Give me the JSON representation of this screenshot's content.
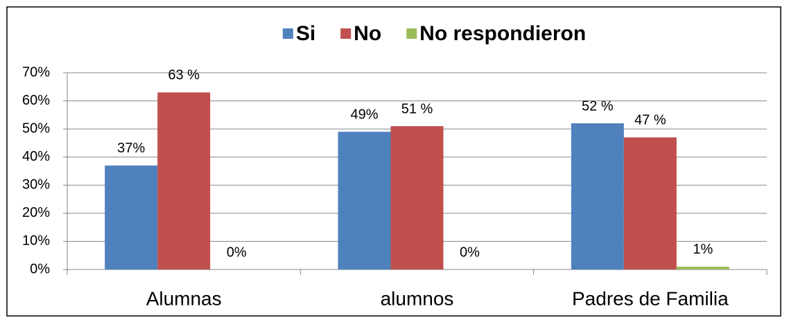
{
  "chart_data": {
    "type": "bar",
    "categories": [
      "Alumnas",
      "alumnos",
      "Padres de Familia"
    ],
    "series": [
      {
        "name": "Si",
        "color": "#4f81bd",
        "values": [
          37,
          49,
          52
        ],
        "value_labels": [
          "37%",
          "49%",
          "52 %"
        ]
      },
      {
        "name": "No",
        "color": "#c0504d",
        "values": [
          63,
          51,
          47
        ],
        "value_labels": [
          "63 %",
          "51 %",
          "47 %"
        ]
      },
      {
        "name": "No respondieron",
        "color": "#9bbb59",
        "values": [
          0,
          0,
          1
        ],
        "value_labels": [
          "0%",
          "0%",
          "1%"
        ]
      }
    ],
    "ylim": [
      0,
      70
    ],
    "yticks": [
      {
        "value": 0,
        "label": "0%"
      },
      {
        "value": 10,
        "label": "10%"
      },
      {
        "value": 20,
        "label": "20%"
      },
      {
        "value": 30,
        "label": "30%"
      },
      {
        "value": 40,
        "label": "40%"
      },
      {
        "value": 50,
        "label": "50%"
      },
      {
        "value": 60,
        "label": "60%"
      },
      {
        "value": 70,
        "label": "70%"
      }
    ],
    "grid": true,
    "legend": "top"
  }
}
